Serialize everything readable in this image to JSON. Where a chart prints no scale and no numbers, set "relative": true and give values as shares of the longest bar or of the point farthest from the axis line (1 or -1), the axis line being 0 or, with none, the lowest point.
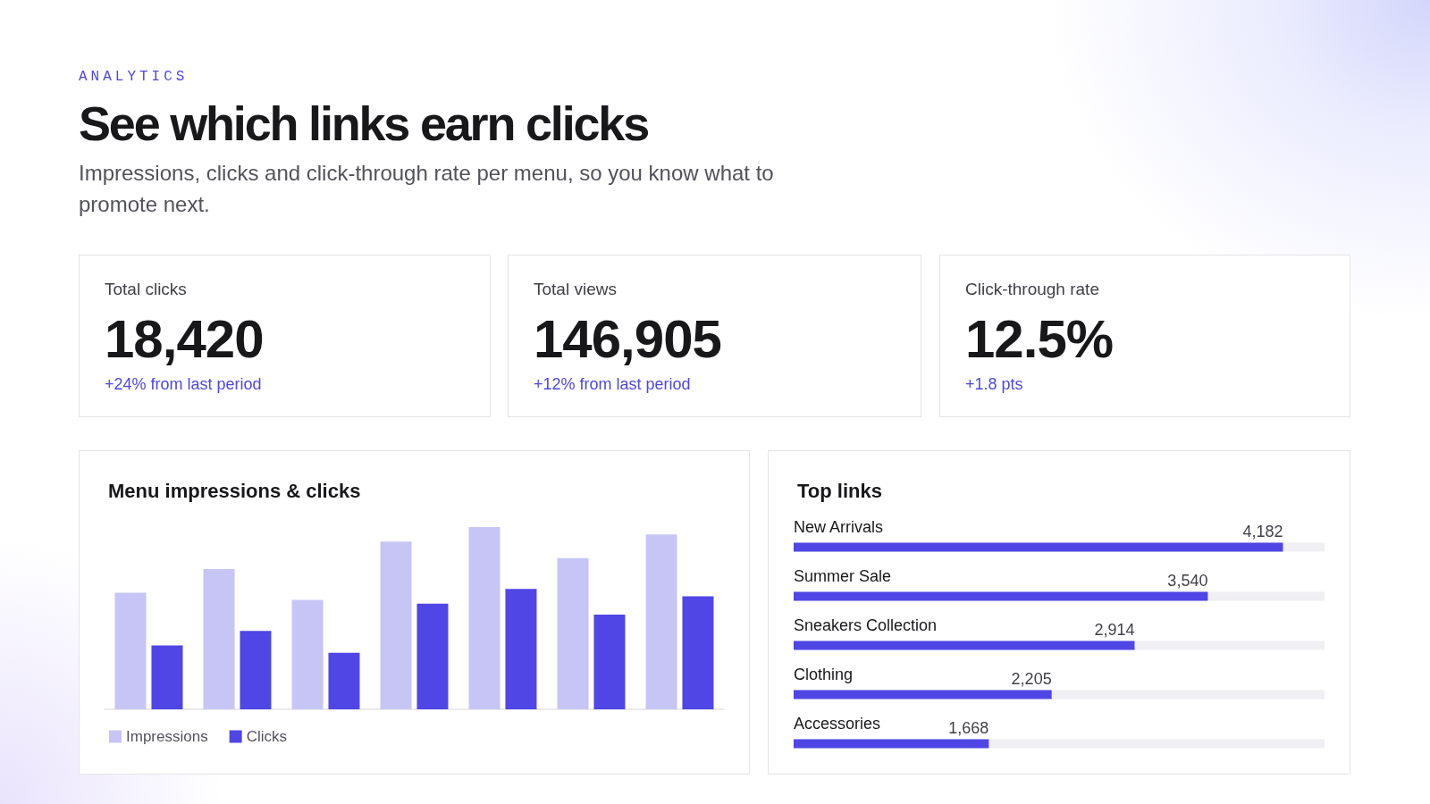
{
  "chart_data": [
    {
      "type": "other",
      "title": "See which links earn clicks",
      "subtitle": "Impressions, clicks and click-through rate per menu, so you know what to promote next.",
      "annotations": [
        "ANALYTICS"
      ]
    },
    {
      "type": "other",
      "title": "Total clicks",
      "annotations": [
        "18,420",
        "+24% from last period"
      ]
    },
    {
      "type": "other",
      "title": "Total views",
      "annotations": [
        "146,905",
        "+12% from last period"
      ]
    },
    {
      "type": "other",
      "title": "Click-through rate",
      "annotations": [
        "12.5%",
        "+1.8 pts"
      ]
    },
    {
      "type": "bar",
      "title": "Menu impressions & clicks",
      "categories": [
        null,
        null,
        null,
        null,
        null,
        null,
        null
      ],
      "relative": true,
      "tick_labels": false,
      "legend": "bottom left",
      "series": [
        {
          "name": "Impressions",
          "color": "#c7c5f5",
          "values": [
            0.64,
            0.77,
            0.6,
            0.92,
            1,
            0.83,
            0.96
          ]
        },
        {
          "name": "Clicks",
          "color": "#4f46e5",
          "values": [
            0.35,
            0.43,
            0.31,
            0.58,
            0.66,
            0.52,
            0.62
          ]
        }
      ]
    },
    {
      "type": "bar",
      "orientation": "horizontal",
      "title": "Top links",
      "categories": [
        "New Arrivals",
        "Summer Sale",
        "Sneakers Collection",
        "Clothing",
        "Accessories"
      ],
      "values": [
        4182,
        3540,
        2914,
        2205,
        1668
      ],
      "value_labels": [
        "4,182",
        "3,540",
        "2,914",
        "2,205",
        "1,668"
      ],
      "color": "#4f46e5",
      "tick_labels": "y"
    }
  ]
}
